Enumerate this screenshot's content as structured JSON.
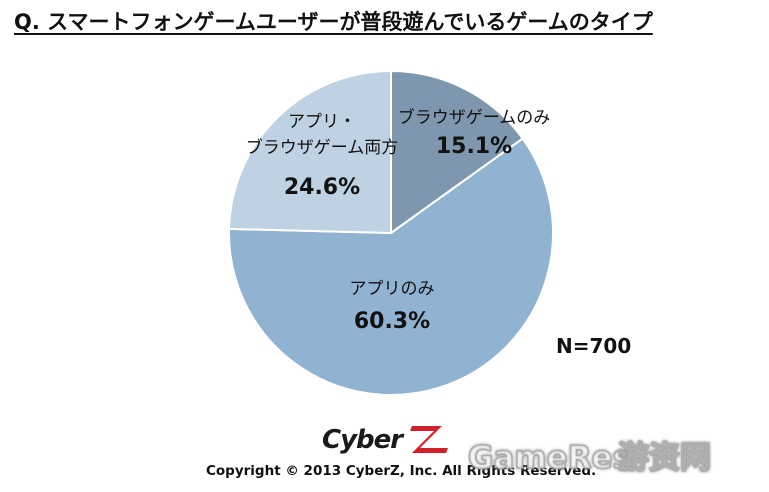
{
  "title": "Q. スマートフォンゲームユーザーが普段遊んでいるゲームのタイプ",
  "n_label": "N=700",
  "copyright": "Copyright © 2013 CyberZ, Inc.  All Rights Reserved.",
  "logo_text": "CyberZ",
  "watermark": "GameRes游资网",
  "colors": {
    "app_only": "#91b3d2",
    "browser_only": "#7f97ae",
    "both": "#bfd2e3",
    "stroke": "#ffffff"
  },
  "chart_data": {
    "type": "pie",
    "title": "Q. スマートフォンゲームユーザーが普段遊んでいるゲームのタイプ",
    "slices": [
      {
        "label_lines": [
          "ブラウザゲームのみ"
        ],
        "value": 15.1,
        "value_label": "15.1%",
        "color_key": "browser_only"
      },
      {
        "label_lines": [
          "アプリのみ"
        ],
        "value": 60.3,
        "value_label": "60.3%",
        "color_key": "app_only"
      },
      {
        "label_lines": [
          "アプリ・",
          "ブラウザゲーム両方"
        ],
        "value": 24.6,
        "value_label": "24.6%",
        "color_key": "both"
      }
    ],
    "start": "12 o'clock",
    "direction": "clockwise"
  }
}
